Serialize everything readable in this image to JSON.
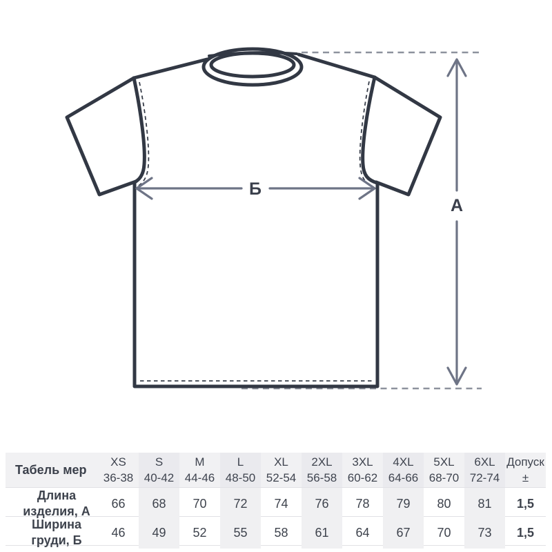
{
  "diagram": {
    "width_label": "Б",
    "length_label": "А",
    "colors": {
      "shirt_outline": "#323844",
      "stitch_dash": "#383e4a",
      "dimension_arrow": "#6e7486",
      "guide_dash": "#8d929d",
      "label_text": "#3a3f4b"
    }
  },
  "table": {
    "header_label": "Табель мер",
    "colors": {
      "header_bg": "#f1f1f3",
      "striped_col_bg": "#f0f0f2",
      "row_border": "#e1e1e5",
      "text": "#3e434d"
    },
    "columns": [
      {
        "size": "XS",
        "range": "36-38",
        "striped": false
      },
      {
        "size": "S",
        "range": "40-42",
        "striped": true
      },
      {
        "size": "M",
        "range": "44-46",
        "striped": false
      },
      {
        "size": "L",
        "range": "48-50",
        "striped": true
      },
      {
        "size": "XL",
        "range": "52-54",
        "striped": false
      },
      {
        "size": "2XL",
        "range": "56-58",
        "striped": true
      },
      {
        "size": "3XL",
        "range": "60-62",
        "striped": false
      },
      {
        "size": "4XL",
        "range": "64-66",
        "striped": true
      },
      {
        "size": "5XL",
        "range": "68-70",
        "striped": false
      },
      {
        "size": "6XL",
        "range": "72-74",
        "striped": true
      },
      {
        "size": "Допуск",
        "range": "±",
        "striped": false
      }
    ],
    "rows": [
      {
        "label": "Длина изделия, А",
        "values": [
          "66",
          "68",
          "70",
          "72",
          "74",
          "76",
          "78",
          "79",
          "80",
          "81"
        ],
        "tolerance": "1,5"
      },
      {
        "label": "Ширина груди, Б",
        "values": [
          "46",
          "49",
          "52",
          "55",
          "58",
          "61",
          "64",
          "67",
          "70",
          "73"
        ],
        "tolerance": "1,5"
      }
    ]
  }
}
